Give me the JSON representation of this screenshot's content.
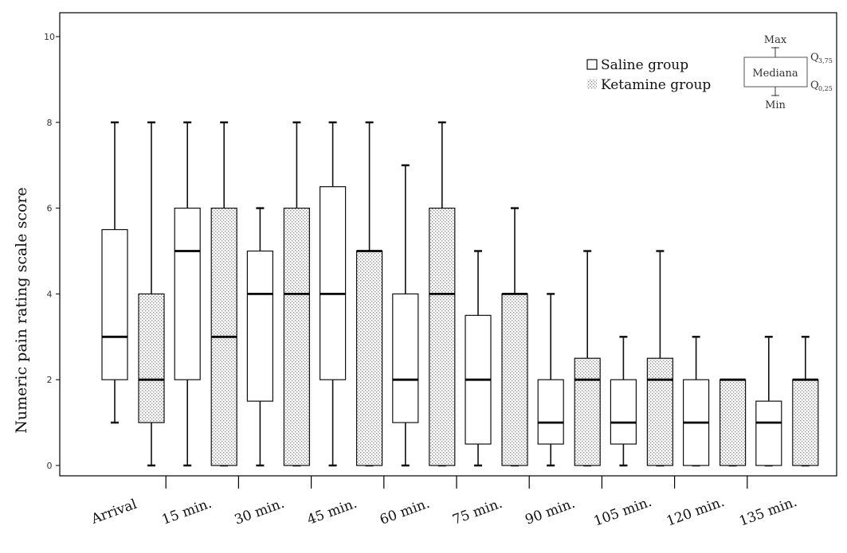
{
  "chart_data": {
    "type": "boxplot",
    "ylabel": "Numeric pain rating scale score",
    "xlabel": "",
    "ylim": [
      0,
      10
    ],
    "yticks": [
      "0",
      "2",
      "4",
      "6",
      "8",
      "10"
    ],
    "categories": [
      "Arrival",
      "15 min.",
      "30 min.",
      "45 min.",
      "60 min.",
      "75 min.",
      "90 min.",
      "105 min.",
      "120 min.",
      "135 min."
    ],
    "series": [
      {
        "name": "Saline group",
        "pattern": "none",
        "boxes": [
          {
            "min": 1,
            "q1": 2,
            "median": 3,
            "q3": 5.5,
            "max": 8
          },
          {
            "min": 0,
            "q1": 2,
            "median": 5,
            "q3": 6,
            "max": 8
          },
          {
            "min": 0,
            "q1": 1.5,
            "median": 4,
            "q3": 5,
            "max": 6
          },
          {
            "min": 0,
            "q1": 2,
            "median": 4,
            "q3": 6.5,
            "max": 8
          },
          {
            "min": 0,
            "q1": 1,
            "median": 2,
            "q3": 4,
            "max": 7
          },
          {
            "min": 0,
            "q1": 0.5,
            "median": 2,
            "q3": 3.5,
            "max": 5
          },
          {
            "min": 0,
            "q1": 0.5,
            "median": 1,
            "q3": 2,
            "max": 4
          },
          {
            "min": 0,
            "q1": 0.5,
            "median": 1,
            "q3": 2,
            "max": 3
          },
          {
            "min": 0,
            "q1": 0,
            "median": 1,
            "q3": 2,
            "max": 3
          },
          {
            "min": 0,
            "q1": 0,
            "median": 1,
            "q3": 1.5,
            "max": 3
          }
        ]
      },
      {
        "name": "Ketamine group",
        "pattern": "dotted",
        "boxes": [
          {
            "min": 0,
            "q1": 1,
            "median": 2,
            "q3": 4,
            "max": 8
          },
          {
            "min": 0,
            "q1": 0,
            "median": 3,
            "q3": 6,
            "max": 8
          },
          {
            "min": 0,
            "q1": 0,
            "median": 4,
            "q3": 6,
            "max": 8
          },
          {
            "min": 0,
            "q1": 0,
            "median": 5,
            "q3": 5,
            "max": 8
          },
          {
            "min": 0,
            "q1": 0,
            "median": 4,
            "q3": 6,
            "max": 8
          },
          {
            "min": 0,
            "q1": 0,
            "median": 4,
            "q3": 4,
            "max": 6
          },
          {
            "min": 0,
            "q1": 0,
            "median": 2,
            "q3": 2.5,
            "max": 5
          },
          {
            "min": 0,
            "q1": 0,
            "median": 2,
            "q3": 2.5,
            "max": 5
          },
          {
            "min": 0,
            "q1": 0,
            "median": 2,
            "q3": 2,
            "max": 2
          },
          {
            "min": 0,
            "q1": 0,
            "median": 2,
            "q3": 2,
            "max": 3
          }
        ]
      }
    ],
    "legend": {
      "position": "top-right",
      "entries": [
        "Saline group",
        "Ketamine group"
      ]
    },
    "key": {
      "max": "Max",
      "min": "Min",
      "median": "Mediana",
      "q_upper": "Q",
      "q_upper_sub": "3,75",
      "q_lower": "Q",
      "q_lower_sub": "0,25"
    },
    "colors": {
      "axis": "#000000",
      "box_stroke": "#111111",
      "hatch": "#9a9a9a",
      "background": "#ffffff"
    },
    "grid": false
  }
}
